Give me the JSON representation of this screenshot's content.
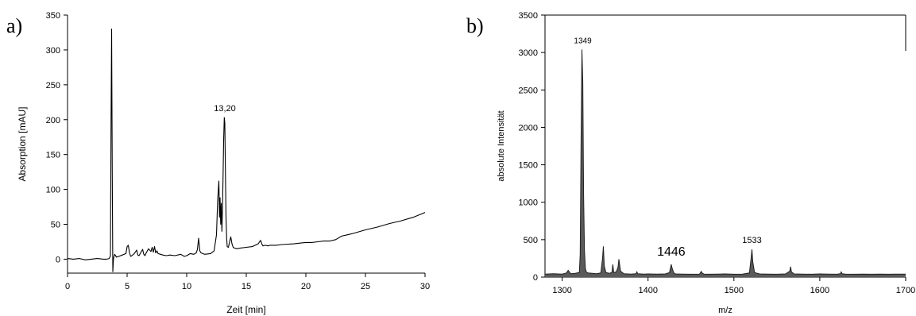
{
  "panel_labels": {
    "a": "a)",
    "b": "b)"
  },
  "chart_data": [
    {
      "type": "line",
      "panel": "a",
      "xlabel": "Zeit [min]",
      "ylabel": "Absorption [mAU]",
      "xlim": [
        0,
        30
      ],
      "ylim": [
        -20,
        350
      ],
      "x_ticks": [
        0,
        5,
        10,
        15,
        20,
        25,
        30
      ],
      "y_ticks": [
        0,
        50,
        100,
        150,
        200,
        250,
        300,
        350
      ],
      "annotations": [
        {
          "text": "13,20",
          "x": 13.2,
          "y": 203
        }
      ],
      "series": [
        {
          "x": [
            0,
            0.5,
            1,
            1.5,
            2,
            2.5,
            3,
            3.3,
            3.5,
            3.6,
            3.65,
            3.7,
            3.75,
            3.8,
            3.85,
            3.9,
            3.95,
            4,
            4.1,
            4.3,
            4.6,
            4.9,
            5.0,
            5.1,
            5.2,
            5.3,
            5.4,
            5.6,
            5.8,
            5.9,
            6.0,
            6.1,
            6.3,
            6.4,
            6.5,
            6.6,
            6.8,
            7.0,
            7.1,
            7.2,
            7.3,
            7.4,
            7.5,
            7.6,
            7.8,
            8.0,
            8.3,
            8.6,
            9.0,
            9.5,
            9.8,
            10.0,
            10.3,
            10.6,
            10.8,
            10.9,
            11.0,
            11.1,
            11.2,
            11.5,
            12.0,
            12.3,
            12.5,
            12.6,
            12.7,
            12.75,
            12.8,
            12.85,
            12.9,
            12.95,
            13.0,
            13.05,
            13.1,
            13.15,
            13.2,
            13.25,
            13.3,
            13.35,
            13.4,
            13.5,
            13.6,
            13.7,
            13.8,
            13.9,
            14.0,
            14.2,
            14.5,
            15.0,
            15.5,
            16.0,
            16.2,
            16.3,
            16.4,
            16.6,
            16.8,
            17.0,
            17.5,
            18.0,
            19.0,
            20.0,
            20.5,
            21.0,
            21.5,
            22.0,
            22.5,
            23.0,
            23.5,
            24.0,
            25.0,
            26.0,
            27.0,
            28.0,
            29.0,
            30.0
          ],
          "y": [
            1,
            0,
            1,
            -1,
            0,
            1,
            0,
            0,
            1,
            5,
            200,
            330,
            120,
            -18,
            0,
            4,
            7,
            6,
            3,
            4,
            6,
            8,
            18,
            20,
            9,
            4,
            5,
            8,
            13,
            6,
            5,
            8,
            14,
            7,
            5,
            9,
            15,
            11,
            17,
            10,
            18,
            9,
            12,
            8,
            7,
            6,
            5,
            6,
            5,
            7,
            4,
            5,
            8,
            7,
            9,
            14,
            30,
            12,
            9,
            7,
            8,
            12,
            35,
            85,
            112,
            60,
            88,
            50,
            80,
            40,
            70,
            120,
            170,
            203,
            195,
            120,
            60,
            30,
            18,
            17,
            25,
            32,
            22,
            17,
            16,
            15,
            16,
            17,
            18,
            22,
            27,
            22,
            19,
            20,
            19,
            20,
            20,
            21,
            22,
            24,
            24,
            25,
            26,
            26,
            28,
            33,
            35,
            37,
            42,
            46,
            51,
            55,
            60,
            67
          ]
        }
      ]
    },
    {
      "type": "line",
      "panel": "b",
      "xlabel": "m/z",
      "ylabel": "absolute Intensität",
      "xlim": [
        1280,
        1700
      ],
      "ylim": [
        0,
        3500
      ],
      "x_ticks": [
        1300,
        1400,
        1500,
        1600,
        1700
      ],
      "y_ticks": [
        0,
        500,
        1000,
        1500,
        2000,
        2500,
        3000,
        3500
      ],
      "annotations": [
        {
          "text": "1349",
          "x": 1324,
          "y": 3040
        },
        {
          "text": "1446",
          "x": 1427,
          "y": 200
        },
        {
          "text": "1533",
          "x": 1521,
          "y": 370
        }
      ],
      "series": [
        {
          "x": [
            1280,
            1290,
            1300,
            1305,
            1307,
            1310,
            1315,
            1320,
            1321,
            1322,
            1323,
            1324,
            1325,
            1326,
            1327,
            1328,
            1330,
            1335,
            1340,
            1345,
            1347,
            1348,
            1349,
            1351,
            1355,
            1358,
            1359,
            1360,
            1363,
            1365,
            1366,
            1368,
            1372,
            1380,
            1386,
            1387,
            1388,
            1395,
            1400,
            1410,
            1420,
            1425,
            1427,
            1428,
            1430,
            1432,
            1440,
            1450,
            1460,
            1462,
            1463,
            1465,
            1470,
            1480,
            1490,
            1500,
            1510,
            1518,
            1520,
            1521,
            1522,
            1524,
            1530,
            1540,
            1550,
            1560,
            1565,
            1566,
            1567,
            1570,
            1580,
            1590,
            1600,
            1610,
            1620,
            1624,
            1625,
            1626,
            1630,
            1640,
            1650,
            1660,
            1670,
            1680,
            1690,
            1700
          ],
          "y": [
            40,
            45,
            40,
            55,
            90,
            45,
            50,
            60,
            300,
            1800,
            3040,
            2600,
            1100,
            350,
            120,
            70,
            55,
            50,
            45,
            55,
            250,
            410,
            150,
            60,
            50,
            65,
            170,
            60,
            70,
            130,
            240,
            80,
            45,
            40,
            45,
            70,
            45,
            40,
            42,
            40,
            42,
            60,
            170,
            120,
            55,
            42,
            40,
            38,
            40,
            75,
            55,
            40,
            38,
            40,
            42,
            38,
            40,
            55,
            250,
            370,
            200,
            60,
            42,
            40,
            38,
            42,
            80,
            140,
            70,
            42,
            40,
            38,
            42,
            40,
            38,
            45,
            70,
            45,
            40,
            38,
            40,
            38,
            40,
            38,
            40,
            40
          ]
        }
      ]
    }
  ]
}
